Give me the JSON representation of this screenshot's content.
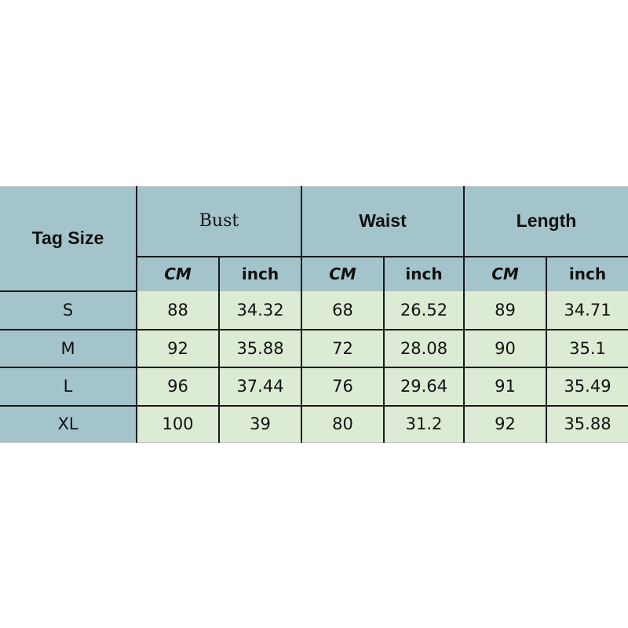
{
  "header": {
    "tag_size": "Tag Size",
    "groups": [
      "Bust",
      "Waist",
      "Length"
    ],
    "units": [
      "CM",
      "inch",
      "CM",
      "inch",
      "CM",
      "inch"
    ]
  },
  "rows": [
    {
      "size": "S",
      "values": [
        "88",
        "34.32",
        "68",
        "26.52",
        "89",
        "34.71"
      ]
    },
    {
      "size": "M",
      "values": [
        "92",
        "35.88",
        "72",
        "28.08",
        "90",
        "35.1"
      ]
    },
    {
      "size": "L",
      "values": [
        "96",
        "37.44",
        "76",
        "29.64",
        "91",
        "35.49"
      ]
    },
    {
      "size": "XL",
      "values": [
        "100",
        "39",
        "80",
        "31.2",
        "92",
        "35.88"
      ]
    }
  ],
  "colors": {
    "header": "#a4c4cb",
    "cells": "#dcebd3"
  }
}
